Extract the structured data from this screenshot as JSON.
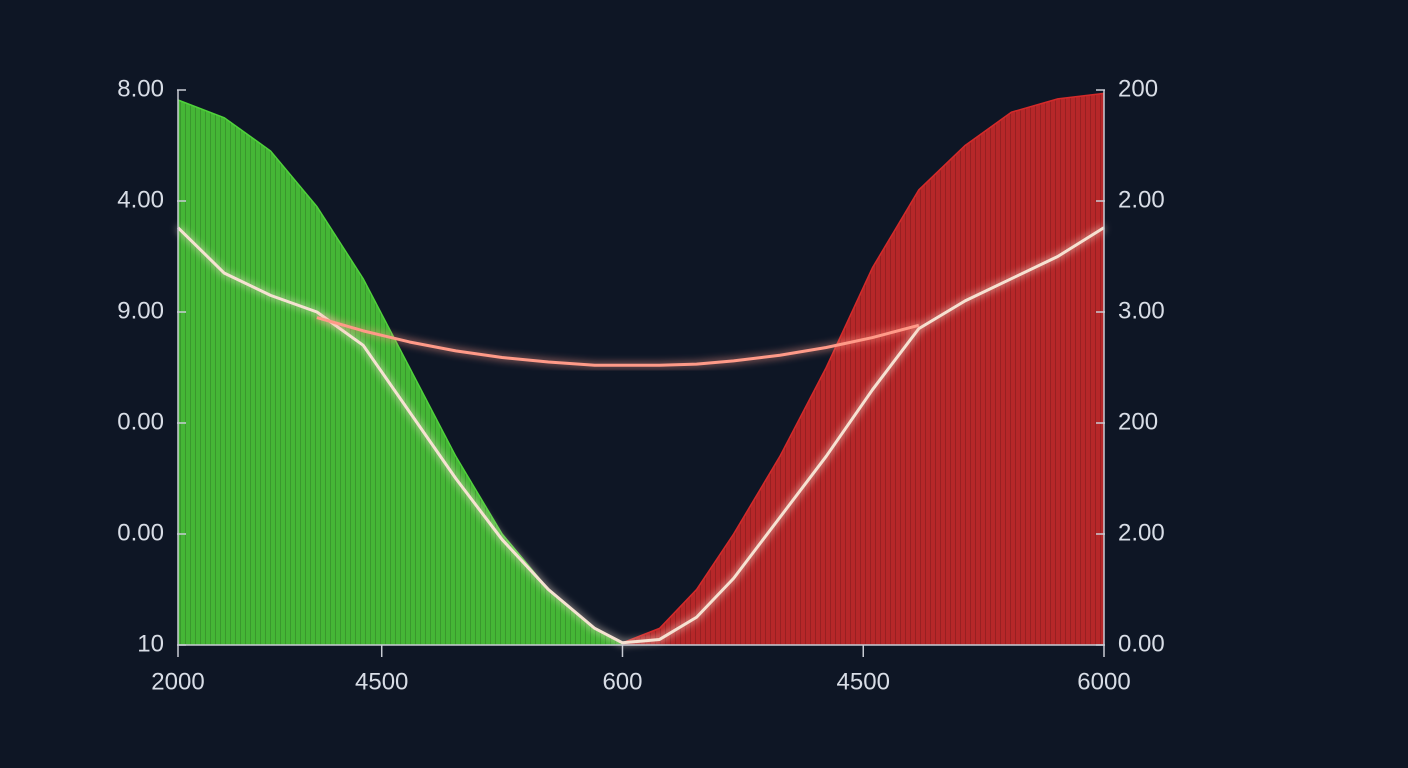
{
  "chart_data": {
    "type": "area",
    "x": [
      0,
      5,
      10,
      15,
      20,
      25,
      30,
      35,
      40,
      45,
      48,
      52,
      56,
      60,
      65,
      70,
      75,
      80,
      85,
      90,
      95,
      100
    ],
    "xlim": [
      0,
      100
    ],
    "xticks": [
      {
        "value": 0,
        "label": "2000"
      },
      {
        "value": 22,
        "label": "4500"
      },
      {
        "value": 48,
        "label": "600"
      },
      {
        "value": 74,
        "label": "4500"
      },
      {
        "value": 100,
        "label": "6000"
      }
    ],
    "ylim": [
      0,
      5
    ],
    "yticks": [
      {
        "value": 0,
        "label": "10"
      },
      {
        "value": 1,
        "label": "0.00"
      },
      {
        "value": 2,
        "label": "0.00"
      },
      {
        "value": 3,
        "label": "9.00"
      },
      {
        "value": 4,
        "label": "4.00"
      },
      {
        "value": 5,
        "label": "8.00"
      }
    ],
    "y2lim": [
      0,
      5
    ],
    "y2ticks": [
      {
        "value": 0,
        "label": "0.00"
      },
      {
        "value": 1,
        "label": "2.00"
      },
      {
        "value": 2,
        "label": "200"
      },
      {
        "value": 3,
        "label": "3.00"
      },
      {
        "value": 4,
        "label": "2.00"
      },
      {
        "value": 5,
        "label": "200"
      }
    ],
    "series": [
      {
        "kind": "area",
        "color": "#4fd23a",
        "values": [
          4.91,
          4.75,
          4.45,
          3.95,
          3.3,
          2.5,
          1.7,
          1.0,
          0.5,
          0.15,
          0.02,
          null,
          null,
          null,
          null,
          null,
          null,
          null,
          null,
          null,
          null,
          null
        ]
      },
      {
        "kind": "area",
        "color": "#d42a2a",
        "axis": "y2",
        "values": [
          null,
          null,
          null,
          null,
          null,
          null,
          null,
          null,
          null,
          null,
          0.02,
          0.15,
          0.5,
          1.0,
          1.7,
          2.5,
          3.4,
          4.1,
          4.5,
          4.8,
          4.92,
          4.97
        ]
      },
      {
        "kind": "line",
        "color": "#f6e2d2",
        "values": [
          3.76,
          3.35,
          3.15,
          3.0,
          2.7,
          2.1,
          1.5,
          0.95,
          0.5,
          0.15,
          0.02,
          0.05,
          0.25,
          0.6,
          1.15,
          1.7,
          2.3,
          2.85,
          3.1,
          3.3,
          3.5,
          3.76
        ]
      },
      {
        "kind": "line",
        "color": "#ff9a88",
        "values": [
          null,
          null,
          null,
          2.95,
          2.83,
          2.73,
          2.65,
          2.59,
          2.55,
          2.52,
          2.52,
          2.52,
          2.53,
          2.56,
          2.61,
          2.68,
          2.77,
          2.88,
          null,
          null,
          null,
          null
        ]
      }
    ]
  }
}
